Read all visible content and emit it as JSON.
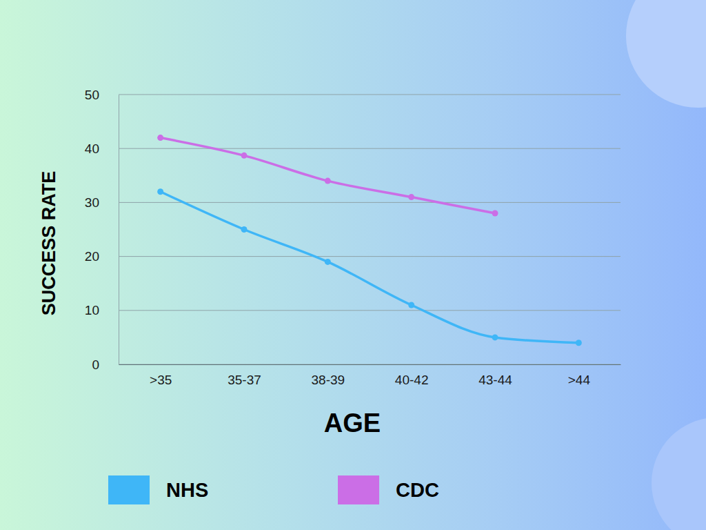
{
  "chart_data": {
    "type": "line",
    "x_label": "AGE",
    "y_label": "SUCCESS RATE",
    "categories": [
      ">35",
      "35-37",
      "38-39",
      "40-42",
      "43-44",
      ">44"
    ],
    "series": [
      {
        "name": "NHS",
        "color": "#3fb6f7",
        "values": [
          32,
          25,
          19,
          11,
          5,
          4
        ],
        "marker": "circle"
      },
      {
        "name": "CDC",
        "color": "#cb6ee6",
        "values": [
          42,
          38.7,
          34,
          31,
          28,
          null
        ],
        "marker": "circle"
      }
    ],
    "ylim": [
      0,
      50
    ],
    "yticks": [
      0,
      10,
      20,
      30,
      40,
      50
    ],
    "grid": true,
    "legend": "bottom"
  }
}
